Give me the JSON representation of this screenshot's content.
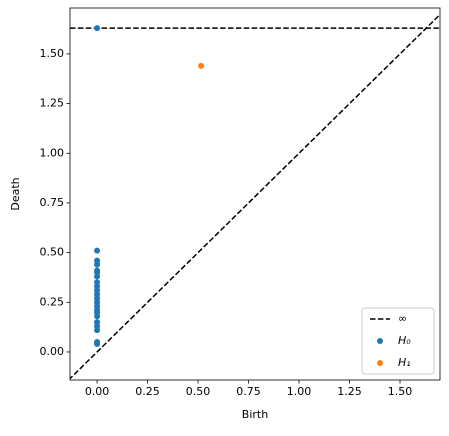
{
  "chart_data": {
    "type": "scatter",
    "xlabel": "Birth",
    "ylabel": "Death",
    "xlim": [
      -0.134,
      1.698
    ],
    "ylim": [
      -0.141,
      1.731
    ],
    "xticks": [
      {
        "value": 0,
        "label": "0.00"
      },
      {
        "value": 0.25,
        "label": "0.25"
      },
      {
        "value": 0.5,
        "label": "0.50"
      },
      {
        "value": 0.75,
        "label": "0.75"
      },
      {
        "value": 1,
        "label": "1.00"
      },
      {
        "value": 1.25,
        "label": "1.25"
      },
      {
        "value": 1.5,
        "label": "1.50"
      }
    ],
    "yticks": [
      {
        "value": 0,
        "label": "0.00"
      },
      {
        "value": 0.25,
        "label": "0.25"
      },
      {
        "value": 0.5,
        "label": "0.50"
      },
      {
        "value": 0.75,
        "label": "0.75"
      },
      {
        "value": 1,
        "label": "1.00"
      },
      {
        "value": 1.25,
        "label": "1.25"
      },
      {
        "value": 1.5,
        "label": "1.50"
      }
    ],
    "infinity": {
      "label": "∞",
      "value": 1.63
    },
    "legend": "lower right",
    "series": [
      {
        "name": "H₀",
        "color": "#1f77b4",
        "x": [
          0,
          0,
          0,
          0,
          0,
          0,
          0,
          0,
          0,
          0,
          0,
          0,
          0,
          0,
          0,
          0,
          0,
          0,
          0,
          0,
          0,
          0
        ],
        "values": [
          0.04,
          0.05,
          0.11,
          0.13,
          0.15,
          0.18,
          0.2,
          0.21,
          0.23,
          0.25,
          0.27,
          0.29,
          0.31,
          0.33,
          0.35,
          0.38,
          0.4,
          0.41,
          0.44,
          0.46,
          0.51,
          1.63
        ]
      },
      {
        "name": "H₁",
        "color": "#ff7f0e",
        "x": [
          0.515
        ],
        "values": [
          1.44
        ]
      }
    ]
  }
}
